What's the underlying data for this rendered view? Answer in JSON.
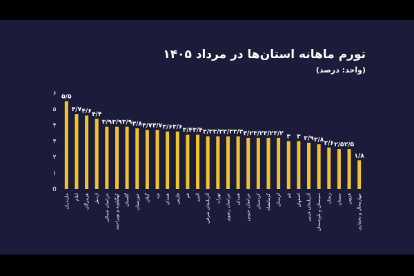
{
  "chart_data": {
    "type": "bar",
    "title": "تورم ماهانه استان‌ها در مرداد ۱۴۰۵",
    "subtitle": "(واحد: درصد)",
    "xlabel": "",
    "ylabel": "",
    "ylim": [
      0,
      6
    ],
    "y_ticks": [
      "0",
      "۱",
      "۲",
      "۳",
      "۴",
      "۵",
      "۶"
    ],
    "grid": false,
    "bar_color": "#f2c230",
    "categories": [
      "مازندران",
      "ایلام",
      "هرمزگان",
      "اردبیل",
      "خراسان شمالی",
      "کهگیلویه و بویراحمد",
      "گلستان",
      "خوزستان",
      "گیلان",
      "یزد",
      "همدان",
      "فارس",
      "قم",
      "البرز",
      "آذربایجان شرقی",
      "تهران",
      "خراسان رضوی",
      "همدان",
      "خراسان جنوبی",
      "کردستان",
      "کرمانشاه",
      "لرستان",
      "قم",
      "اصفهان",
      "آذربایجان غربی",
      "سیستان و بلوچستان",
      "زنجان",
      "سمنان",
      "قزوین",
      "چهارمحال و بختیاری"
    ],
    "values": [
      5.5,
      4.7,
      4.6,
      4.4,
      3.9,
      3.9,
      3.9,
      3.8,
      3.7,
      3.7,
      3.6,
      3.6,
      3.4,
      3.4,
      3.3,
      3.3,
      3.3,
      3.3,
      3.2,
      3.2,
      3.2,
      3.2,
      3.0,
      3.0,
      2.9,
      2.8,
      2.6,
      2.5,
      2.5,
      1.8
    ],
    "data_labels": [
      "۵/۵",
      "۴/۷",
      "۴/۶",
      "۴/۴",
      "۳/۹",
      "۳/۹",
      "۳/۹",
      "۳/۸",
      "۳/۷",
      "۳/۷",
      "۳/۶",
      "۳/۶",
      "۳/۴",
      "۳/۴",
      "۳/۳",
      "۳/۳",
      "۳/۳",
      "۳/۳",
      "۳/۲",
      "۳/۲",
      "۳/۲",
      "۳/۲",
      "۳",
      "۳",
      "۲/۹",
      "۲/۸",
      "۲/۶",
      "۲/۵",
      "۲/۵",
      "۱/۸"
    ]
  }
}
